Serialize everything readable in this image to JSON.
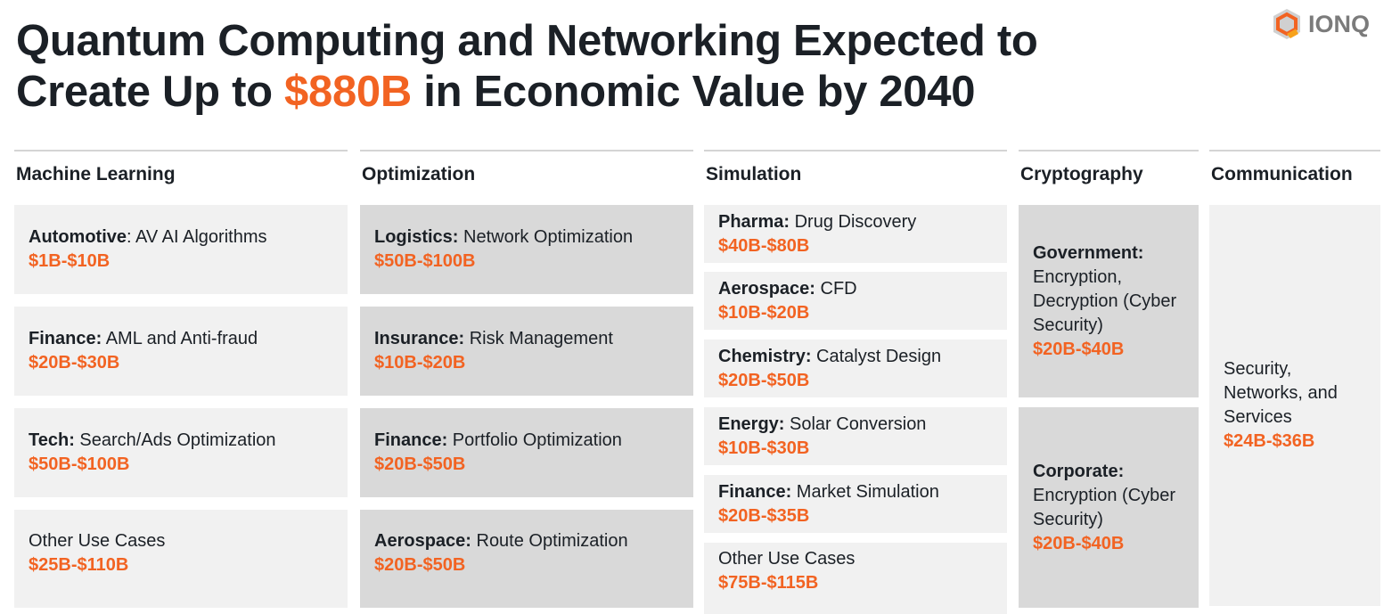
{
  "title": {
    "line1": "Quantum Computing and Networking Expected to",
    "line2_pre": "Create Up to ",
    "highlight": "$880B",
    "line2_post": " in Economic Value by 2040"
  },
  "logo": {
    "text": "IONQ"
  },
  "colors": {
    "accent": "#f26322",
    "light": "#f1f1f1",
    "dark": "#d9d9d9"
  },
  "columns": [
    {
      "header": "Machine Learning",
      "items": [
        {
          "bold": "Automotive",
          "desc": ": AV AI Algorithms",
          "value": "$1B-$10B"
        },
        {
          "bold": "Finance:",
          "desc": " AML and Anti-fraud",
          "value": "$20B-$30B"
        },
        {
          "bold": "Tech:",
          "desc": " Search/Ads Optimization",
          "value": "$50B-$100B"
        },
        {
          "bold": "",
          "desc": "Other Use Cases",
          "value": "$25B-$110B"
        }
      ]
    },
    {
      "header": "Optimization",
      "items": [
        {
          "bold": "Logistics:",
          "desc": " Network Optimization",
          "value": "$50B-$100B"
        },
        {
          "bold": "Insurance:",
          "desc": " Risk Management",
          "value": "$10B-$20B"
        },
        {
          "bold": "Finance:",
          "desc": " Portfolio Optimization",
          "value": "$20B-$50B"
        },
        {
          "bold": "Aerospace:",
          "desc": " Route Optimization",
          "value": "$20B-$50B"
        }
      ]
    },
    {
      "header": "Simulation",
      "items": [
        {
          "bold": "Pharma:",
          "desc": " Drug Discovery",
          "value": "$40B-$80B"
        },
        {
          "bold": "Aerospace:",
          "desc": " CFD",
          "value": "$10B-$20B"
        },
        {
          "bold": "Chemistry:",
          "desc": " Catalyst Design",
          "value": "$20B-$50B"
        },
        {
          "bold": "Energy:",
          "desc": " Solar Conversion",
          "value": "$10B-$30B"
        },
        {
          "bold": "Finance:",
          "desc": " Market Simulation",
          "value": "$20B-$35B"
        },
        {
          "bold": "",
          "desc": "Other Use Cases",
          "value": "$75B-$115B"
        }
      ]
    },
    {
      "header": "Cryptography",
      "items": [
        {
          "bold": "Government:",
          "desc": "Encryption, Decryption (Cyber Security)",
          "value": "$20B-$40B"
        },
        {
          "bold": "Corporate:",
          "desc": "Encryption (Cyber Security)",
          "value": "$20B-$40B"
        }
      ]
    },
    {
      "header": "Communication",
      "items": [
        {
          "bold": "",
          "desc": "Security, Networks, and Services",
          "value": "$24B-$36B"
        }
      ]
    }
  ]
}
